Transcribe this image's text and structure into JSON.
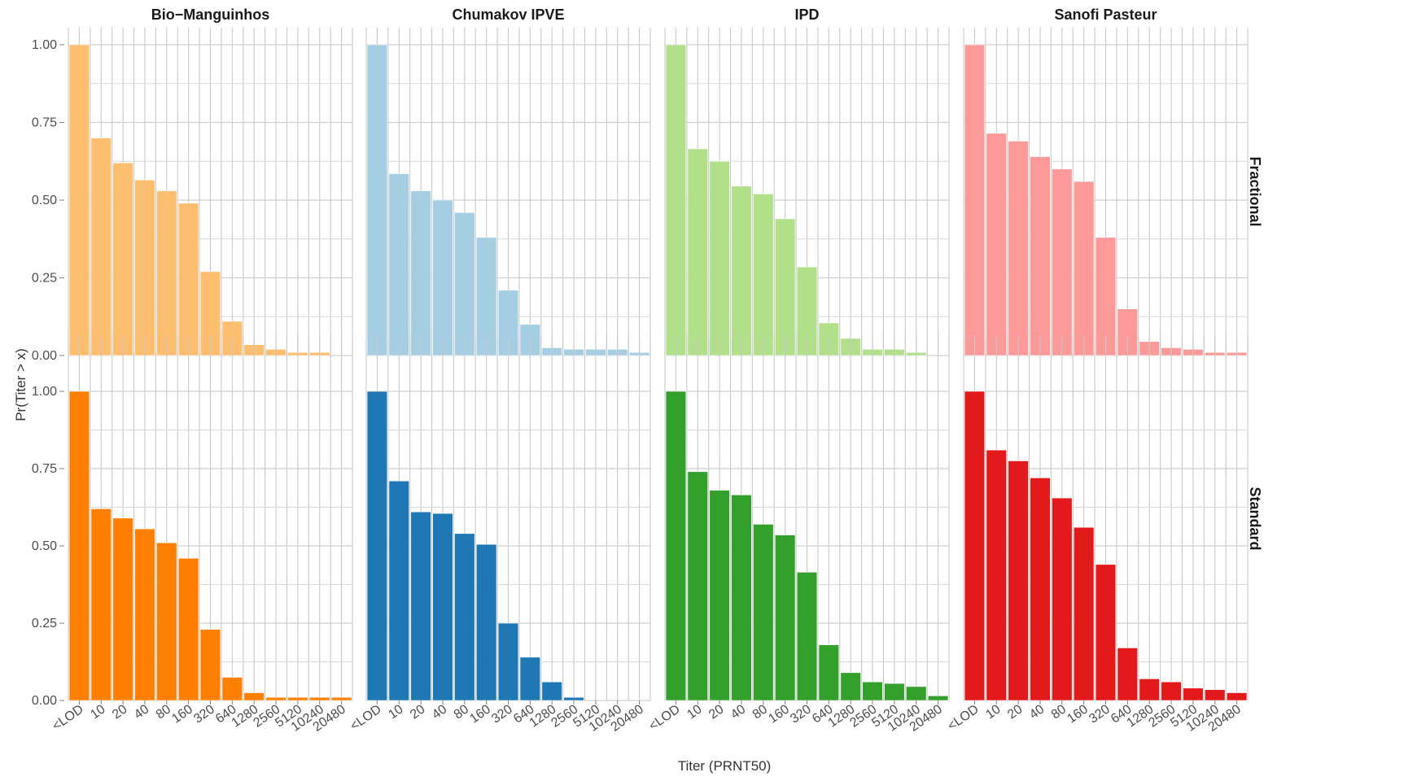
{
  "chart_data": {
    "type": "bar",
    "xlabel": "Titer (PRNT50)",
    "ylabel": "Pr(Titer > x)",
    "ylim": [
      0,
      1
    ],
    "yticks": [
      "0.00",
      "0.25",
      "0.50",
      "0.75",
      "1.00"
    ],
    "categories": [
      "<LOD",
      "10",
      "20",
      "40",
      "80",
      "160",
      "320",
      "640",
      "1280",
      "2560",
      "5120",
      "10240",
      "20480"
    ],
    "columns": [
      "Bio−Manguinhos",
      "Chumakov IPVE",
      "IPD",
      "Sanofi Pasteur"
    ],
    "rows": [
      "Fractional",
      "Standard"
    ],
    "grid": true,
    "panels": [
      {
        "column": "Bio−Manguinhos",
        "row": "Fractional",
        "color": "#fdbf6f",
        "values": [
          1.0,
          0.7,
          0.62,
          0.565,
          0.53,
          0.49,
          0.27,
          0.11,
          0.035,
          0.02,
          0.01,
          0.01,
          0.0
        ]
      },
      {
        "column": "Chumakov IPVE",
        "row": "Fractional",
        "color": "#a6cee3",
        "values": [
          1.0,
          0.585,
          0.53,
          0.5,
          0.46,
          0.38,
          0.21,
          0.1,
          0.025,
          0.02,
          0.02,
          0.02,
          0.01
        ]
      },
      {
        "column": "IPD",
        "row": "Fractional",
        "color": "#b2df8a",
        "values": [
          1.0,
          0.665,
          0.625,
          0.545,
          0.52,
          0.44,
          0.285,
          0.105,
          0.055,
          0.02,
          0.02,
          0.01,
          0.0
        ]
      },
      {
        "column": "Sanofi Pasteur",
        "row": "Fractional",
        "color": "#fb9a99",
        "values": [
          1.0,
          0.715,
          0.69,
          0.64,
          0.6,
          0.56,
          0.38,
          0.15,
          0.045,
          0.025,
          0.02,
          0.01,
          0.01
        ]
      },
      {
        "column": "Bio−Manguinhos",
        "row": "Standard",
        "color": "#ff7f00",
        "values": [
          1.0,
          0.62,
          0.59,
          0.555,
          0.51,
          0.46,
          0.23,
          0.075,
          0.025,
          0.01,
          0.01,
          0.01,
          0.01
        ]
      },
      {
        "column": "Chumakov IPVE",
        "row": "Standard",
        "color": "#1f78b4",
        "values": [
          1.0,
          0.71,
          0.61,
          0.605,
          0.54,
          0.505,
          0.25,
          0.14,
          0.06,
          0.01,
          0.0,
          0.0,
          0.0
        ]
      },
      {
        "column": "IPD",
        "row": "Standard",
        "color": "#33a02c",
        "values": [
          1.0,
          0.74,
          0.68,
          0.665,
          0.57,
          0.535,
          0.415,
          0.18,
          0.09,
          0.06,
          0.055,
          0.045,
          0.015
        ]
      },
      {
        "column": "Sanofi Pasteur",
        "row": "Standard",
        "color": "#e31a1c",
        "values": [
          1.0,
          0.81,
          0.775,
          0.72,
          0.655,
          0.56,
          0.44,
          0.17,
          0.07,
          0.06,
          0.04,
          0.035,
          0.025
        ]
      }
    ]
  }
}
